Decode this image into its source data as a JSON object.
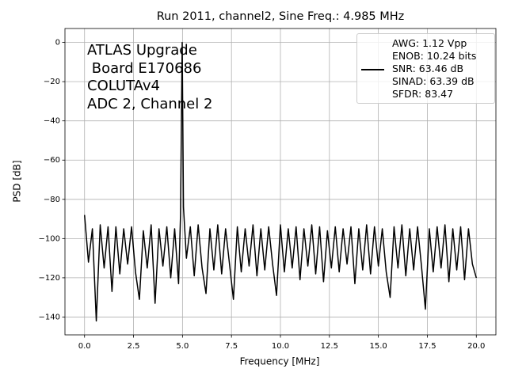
{
  "chart_data": {
    "type": "line",
    "title": "Run 2011, channel2, Sine Freq.: 4.985 MHz",
    "xlabel": "Frequency [MHz]",
    "ylabel": "PSD [dB]",
    "annotation_lines": [
      "ATLAS Upgrade",
      " Board E170686",
      "COLUTAv4",
      "ADC 2, Channel 2"
    ],
    "xlim": [
      -1,
      21
    ],
    "ylim": [
      -149.1,
      7.1
    ],
    "xticks": [
      {
        "value": 0,
        "label": "0.0"
      },
      {
        "value": 2.5,
        "label": "2.5"
      },
      {
        "value": 5,
        "label": "5.0"
      },
      {
        "value": 7.5,
        "label": "7.5"
      },
      {
        "value": 10,
        "label": "10.0"
      },
      {
        "value": 12.5,
        "label": "12.5"
      },
      {
        "value": 15,
        "label": "15.0"
      },
      {
        "value": 17.5,
        "label": "17.5"
      },
      {
        "value": 20,
        "label": "20.0"
      }
    ],
    "yticks": [
      0,
      {
        "value": -20,
        "label": "−20"
      },
      {
        "value": -40,
        "label": "−40"
      },
      {
        "value": -60,
        "label": "−60"
      },
      {
        "value": -80,
        "label": "−80"
      },
      {
        "value": -100,
        "label": "−100"
      },
      {
        "value": -120,
        "label": "−120"
      },
      {
        "value": -140,
        "label": "−140"
      }
    ],
    "grid": true,
    "legend_position": "upper right",
    "x": [
      0,
      0.2,
      0.4,
      0.6,
      0.8,
      1.0,
      1.2,
      1.4,
      1.6,
      1.8,
      2.0,
      2.2,
      2.4,
      2.6,
      2.8,
      3.0,
      3.2,
      3.4,
      3.6,
      3.8,
      4.0,
      4.2,
      4.4,
      4.6,
      4.8,
      4.9,
      4.985,
      5.05,
      5.2,
      5.4,
      5.6,
      5.8,
      6.0,
      6.2,
      6.4,
      6.6,
      6.8,
      7.0,
      7.2,
      7.4,
      7.6,
      7.8,
      8.0,
      8.2,
      8.4,
      8.6,
      8.8,
      9.0,
      9.2,
      9.4,
      9.6,
      9.8,
      10.0,
      10.2,
      10.4,
      10.6,
      10.8,
      11.0,
      11.2,
      11.4,
      11.6,
      11.8,
      12.0,
      12.2,
      12.4,
      12.6,
      12.8,
      13.0,
      13.2,
      13.4,
      13.6,
      13.8,
      14.0,
      14.2,
      14.4,
      14.6,
      14.8,
      15.0,
      15.2,
      15.4,
      15.6,
      15.8,
      16.0,
      16.2,
      16.4,
      16.6,
      16.8,
      17.0,
      17.2,
      17.4,
      17.6,
      17.8,
      18.0,
      18.2,
      18.4,
      18.6,
      18.8,
      19.0,
      19.2,
      19.4,
      19.6,
      19.8,
      20.0
    ],
    "series": [
      {
        "name": "AWG: 1.12 Vpp\nENOB: 10.24 bits\nSNR: 63.46 dB\nSINAD: 63.39 dB\nSFDR: 83.47",
        "color": "#000000",
        "values": [
          -88,
          -112,
          -95,
          -142,
          -93,
          -115,
          -94,
          -127,
          -94,
          -118,
          -95,
          -113,
          -94,
          -117,
          -131,
          -96,
          -115,
          -93,
          -133,
          -95,
          -114,
          -94,
          -120,
          -95,
          -123,
          -88,
          0,
          -84,
          -110,
          -94,
          -119,
          -93,
          -115,
          -128,
          -95,
          -116,
          -93,
          -118,
          -95,
          -113,
          -131,
          -94,
          -117,
          -95,
          -114,
          -93,
          -119,
          -95,
          -116,
          -94,
          -113,
          -129,
          -93,
          -117,
          -95,
          -115,
          -94,
          -121,
          -95,
          -114,
          -93,
          -118,
          -94,
          -122,
          -96,
          -115,
          -94,
          -117,
          -95,
          -113,
          -94,
          -123,
          -95,
          -116,
          -93,
          -118,
          -94,
          -114,
          -95,
          -117,
          -130,
          -94,
          -115,
          -93,
          -119,
          -95,
          -116,
          -94,
          -114,
          -136,
          -95,
          -117,
          -94,
          -115,
          -93,
          -122,
          -95,
          -116,
          -94,
          -121,
          -95,
          -113,
          -120
        ]
      }
    ]
  }
}
